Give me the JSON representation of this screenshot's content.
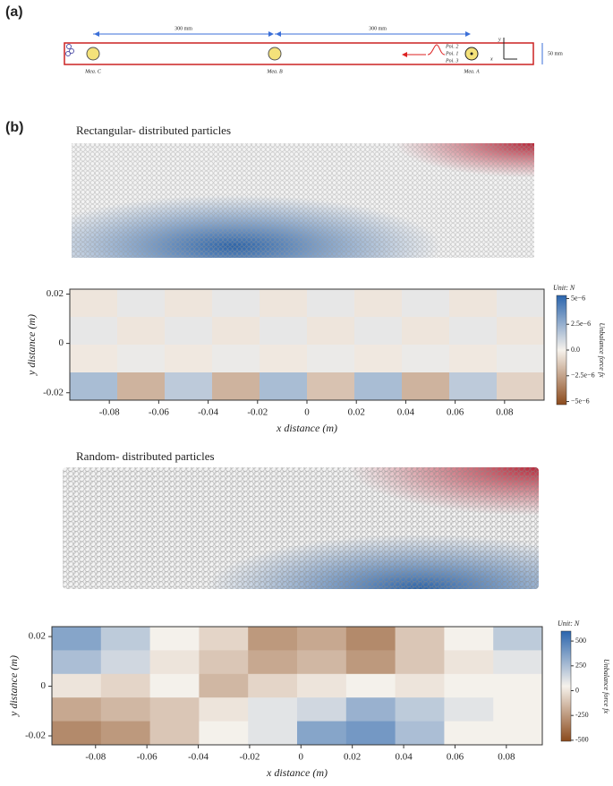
{
  "panel_labels": [
    "(a)",
    "(b)"
  ],
  "diagram": {
    "dimensions": [
      "300 mm",
      "300 mm",
      "50 mm"
    ],
    "measures": [
      "Mea. C",
      "Mea. B",
      "Mea. A"
    ],
    "points": [
      "Poi. 2",
      "Poi. 1",
      "Poi. 3"
    ],
    "axes": [
      "y",
      "x"
    ]
  },
  "particle_titles": [
    "Rectangular- distributed particles",
    "Random- distributed particles"
  ],
  "chart_data": [
    {
      "type": "heatmap",
      "xlabel": "x distance (m)",
      "ylabel": "y distance (m)",
      "xlim": [
        -0.096,
        0.096
      ],
      "ylim": [
        -0.023,
        0.022
      ],
      "xticks": [
        -0.08,
        -0.06,
        -0.04,
        -0.02,
        0,
        0.02,
        0.04,
        0.06,
        0.08
      ],
      "yticks": [
        -0.02,
        0,
        0.02
      ],
      "z": [
        [
          -4e-07,
          4e-07,
          -4e-07,
          4e-07,
          -4e-07,
          4e-07,
          -4e-07,
          4e-07,
          -4e-07,
          4e-07
        ],
        [
          4e-07,
          -4e-07,
          4e-07,
          -4e-07,
          4e-07,
          -4e-07,
          4e-07,
          -4e-07,
          4e-07,
          -4e-07
        ],
        [
          -3e-07,
          3e-07,
          -3e-07,
          3e-07,
          -3e-07,
          3e-07,
          -3e-07,
          3e-07,
          -3e-07,
          3e-07
        ],
        [
          2e-06,
          -2e-06,
          1.5e-06,
          -2e-06,
          2e-06,
          -1.5e-06,
          2e-06,
          -2e-06,
          1.5e-06,
          -1e-06
        ]
      ],
      "colorbar_title": "Unit: N",
      "colorbar_label": "Unbalance force fx",
      "clim": [
        -5.3e-06,
        5.3e-06
      ],
      "cticks": [
        {
          "value": 5e-06,
          "label": "5e−6"
        },
        {
          "value": 2.5e-06,
          "label": "2.5e−6"
        },
        {
          "value": 0,
          "label": "0.0"
        },
        {
          "value": -2.5e-06,
          "label": "−2.5e−6"
        },
        {
          "value": -5e-06,
          "label": "−5e−6"
        }
      ]
    },
    {
      "type": "heatmap",
      "xlabel": "x distance (m)",
      "ylabel": "y distance (m)",
      "xlim": [
        -0.097,
        0.094
      ],
      "ylim": [
        -0.0236,
        0.024
      ],
      "xticks": [
        -0.08,
        -0.06,
        -0.04,
        -0.02,
        0,
        0.02,
        0.04,
        0.06,
        0.08
      ],
      "yticks": [
        -0.02,
        0,
        0.02
      ],
      "z": [
        [
          350,
          200,
          50,
          -50,
          -250,
          -200,
          -300,
          -100,
          50,
          200
        ],
        [
          250,
          150,
          0,
          -100,
          -200,
          -150,
          -250,
          -100,
          0,
          100
        ],
        [
          0,
          -50,
          50,
          -150,
          -50,
          0,
          50,
          0,
          50,
          50
        ],
        [
          -200,
          -150,
          -100,
          0,
          100,
          150,
          300,
          200,
          100,
          50
        ],
        [
          -300,
          -250,
          -100,
          50,
          100,
          350,
          400,
          250,
          50,
          50
        ]
      ],
      "colorbar_title": "Unit: N",
      "colorbar_label": "Unbalance force fx",
      "clim": [
        -510,
        600
      ],
      "cticks": [
        500,
        250,
        0,
        -250,
        -500
      ]
    }
  ]
}
